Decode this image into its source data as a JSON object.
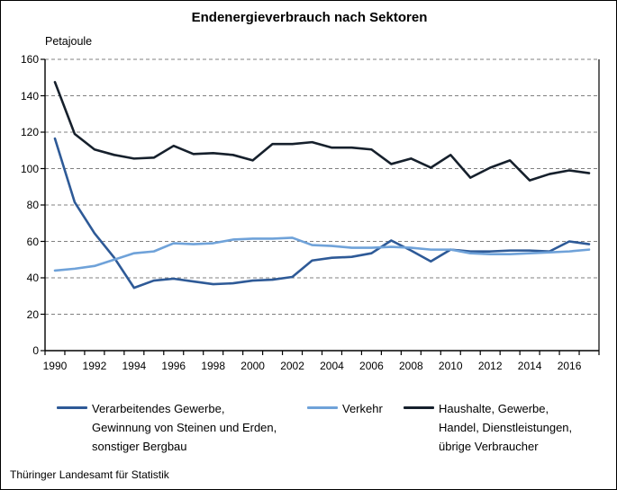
{
  "title": "Endenergieverbrauch nach Sektoren",
  "y_unit_label": "Petajoule",
  "source": "Thüringer Landesamt für Statistik",
  "chart_data": {
    "type": "line",
    "title": "Endenergieverbrauch nach Sektoren",
    "ylabel": "Petajoule",
    "ylim": [
      0,
      160
    ],
    "ytick_step": 20,
    "grid": "horizontal-dashed",
    "grid_color": "#808080",
    "axis_color": "#000000",
    "legend_position": "bottom",
    "x": [
      1990,
      1991,
      1992,
      1993,
      1994,
      1995,
      1996,
      1997,
      1998,
      1999,
      2000,
      2001,
      2002,
      2003,
      2004,
      2005,
      2006,
      2007,
      2008,
      2009,
      2010,
      2011,
      2012,
      2013,
      2014,
      2015,
      2016,
      2017
    ],
    "xtick_labels": [
      "1990",
      "1992",
      "1994",
      "1996",
      "1998",
      "2000",
      "2002",
      "2004",
      "2006",
      "2008",
      "2010",
      "2012",
      "2014",
      "2016"
    ],
    "series": [
      {
        "name": "Verarbeitendes Gewerbe, Gewinnung von Steinen und Erden, sonstiger Bergbau",
        "color": "#2E5A97",
        "values": [
          116.5,
          81.5,
          64.5,
          51,
          34.5,
          38.5,
          39.5,
          38,
          36.5,
          37,
          38.5,
          39,
          40.5,
          49.5,
          51,
          51.5,
          53.5,
          60.5,
          55,
          49,
          55.5,
          54.5,
          54.5,
          55,
          55,
          54.5,
          60,
          58.5
        ]
      },
      {
        "name": "Verkehr",
        "color": "#6FA2D9",
        "values": [
          44,
          45,
          46.5,
          50,
          53.5,
          54.5,
          59,
          58.5,
          59,
          61,
          61.5,
          61.5,
          62,
          58,
          57.5,
          56.5,
          56.5,
          57,
          56.5,
          55.5,
          55.5,
          53.5,
          53,
          53,
          53.5,
          54,
          54.5,
          55.5
        ]
      },
      {
        "name": "Haushalte, Gewerbe, Handel, Dienstleistungen, übrige Verbraucher",
        "color": "#16202C",
        "values": [
          147.5,
          119,
          110.5,
          107.5,
          105.5,
          106,
          112.5,
          108,
          108.5,
          107.5,
          104.5,
          113.5,
          113.5,
          114.5,
          111.5,
          111.5,
          110.5,
          102.5,
          105.5,
          100.5,
          107.5,
          95,
          100.5,
          104.5,
          93.5,
          97,
          99,
          97.5
        ]
      }
    ]
  },
  "legend": {
    "items": [
      {
        "lines": [
          "Verarbeitendes Gewerbe,",
          "Gewinnung von Steinen und Erden,",
          "sonstiger Bergbau"
        ]
      },
      {
        "lines": [
          "Verkehr"
        ]
      },
      {
        "lines": [
          "Haushalte, Gewerbe,",
          "Handel, Dienstleistungen,",
          "übrige Verbraucher"
        ]
      }
    ]
  }
}
